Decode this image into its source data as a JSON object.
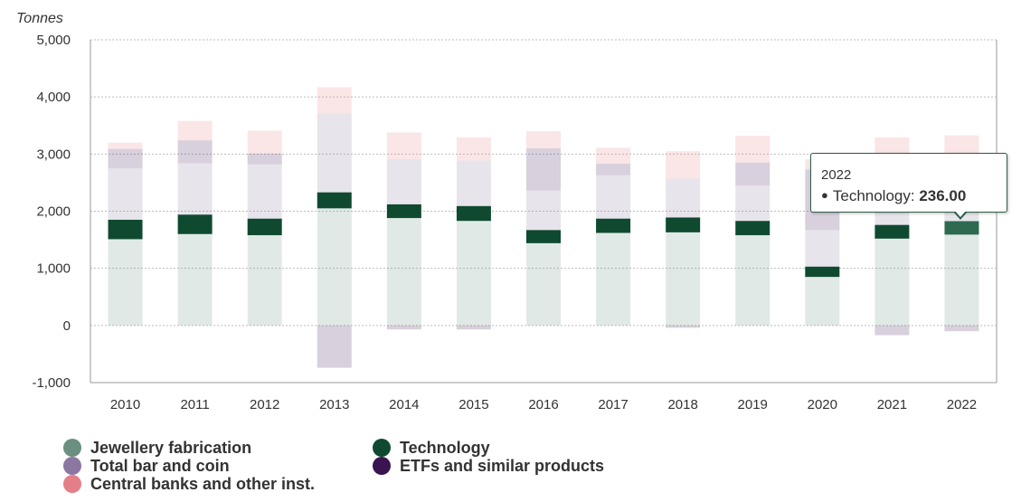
{
  "chart_data": {
    "type": "bar",
    "stacked": true,
    "unit_label": "Tonnes",
    "xlabel": "",
    "ylabel": "",
    "ylim": [
      -1000,
      5000
    ],
    "yticks": [
      -1000,
      0,
      1000,
      2000,
      3000,
      4000,
      5000
    ],
    "ytick_labels": [
      "-1,000",
      "0",
      "1,000",
      "2,000",
      "3,000",
      "4,000",
      "5,000"
    ],
    "grid": true,
    "legend_position": "bottom-left",
    "categories": [
      "2010",
      "2011",
      "2012",
      "2013",
      "2014",
      "2015",
      "2016",
      "2017",
      "2018",
      "2019",
      "2020",
      "2021",
      "2022"
    ],
    "series": [
      {
        "name": "Jewellery fabrication",
        "color": "#6b8f80",
        "values": [
          1510,
          1600,
          1580,
          2050,
          1880,
          1830,
          1440,
          1620,
          1630,
          1580,
          850,
          1520,
          1590
        ]
      },
      {
        "name": "Technology",
        "color": "#0f4a30",
        "values": [
          340,
          340,
          290,
          280,
          240,
          260,
          230,
          250,
          260,
          250,
          180,
          240,
          236
        ]
      },
      {
        "name": "Total bar and coin",
        "color": "#8b77a2",
        "values": [
          900,
          900,
          950,
          1380,
          790,
          800,
          690,
          760,
          680,
          620,
          640,
          970,
          1050
        ]
      },
      {
        "name": "ETFs and similar products",
        "color": "#3a1450",
        "values": [
          340,
          400,
          190,
          -740,
          -70,
          -70,
          740,
          200,
          -40,
          400,
          1060,
          -170,
          -100
        ]
      },
      {
        "name": "Central banks and other inst.",
        "color": "#e47f87",
        "values": [
          110,
          340,
          400,
          460,
          470,
          400,
          300,
          280,
          480,
          470,
          180,
          560,
          450
        ]
      }
    ],
    "highlight": {
      "category": "2022",
      "series": "Technology"
    },
    "tooltip": {
      "header": "2022",
      "series": "Technology",
      "label": "Technology: ",
      "value": "236.00"
    }
  }
}
